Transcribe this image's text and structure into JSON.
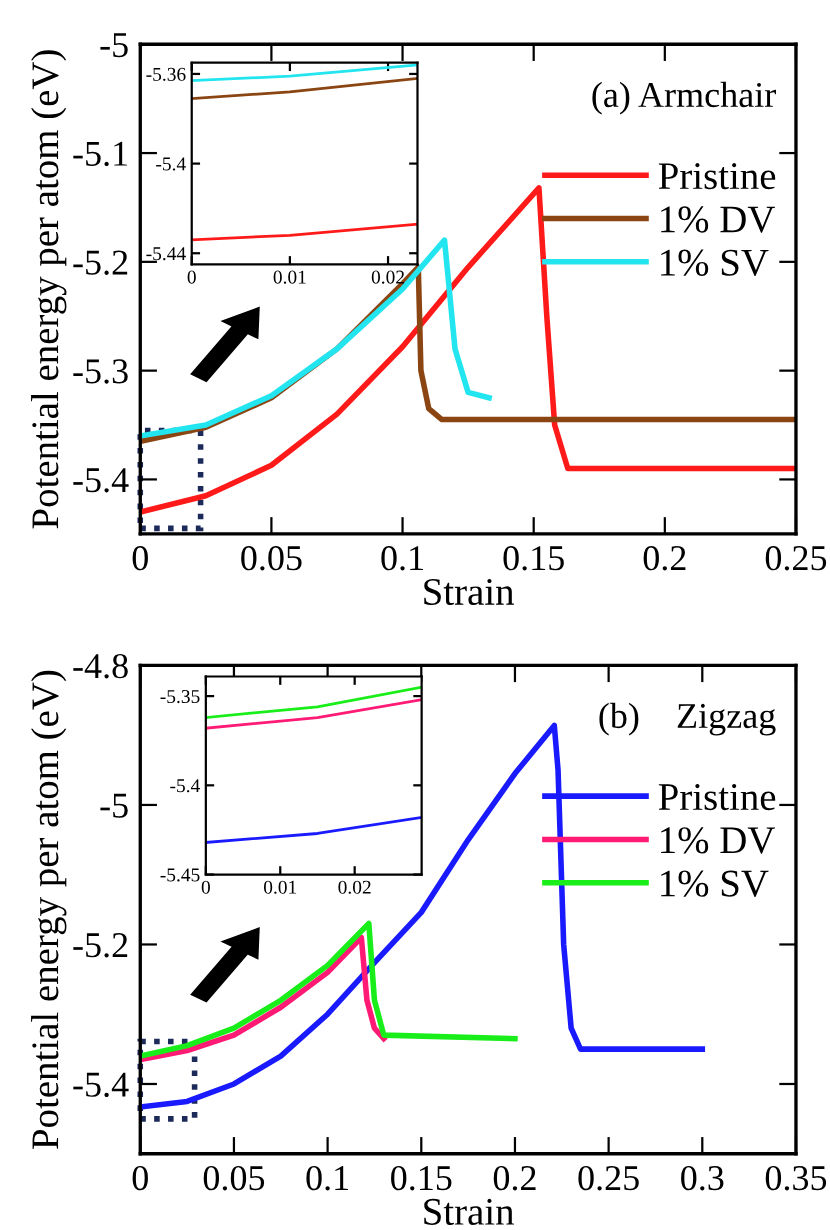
{
  "chart_data": [
    {
      "type": "line",
      "xlabel": "Strain",
      "ylabel": "Potential energy per atom (eV)",
      "xlim": [
        0,
        0.25
      ],
      "ylim": [
        -5.45,
        -5
      ],
      "xticks": [
        0,
        0.05,
        0.1,
        0.15,
        0.2,
        0.25
      ],
      "yticks": [
        -5,
        -5.1,
        -5.2,
        -5.3,
        -5.4
      ],
      "legend": "right",
      "annotations": [
        "(a) Armchair"
      ],
      "series": [
        {
          "name": "Pristine",
          "color": "#ff1a1a",
          "x": [
            0,
            0.025,
            0.05,
            0.075,
            0.1,
            0.125,
            0.152,
            0.155,
            0.158,
            0.163,
            0.25
          ],
          "values": [
            -5.43,
            -5.415,
            -5.387,
            -5.34,
            -5.278,
            -5.205,
            -5.132,
            -5.25,
            -5.35,
            -5.39,
            -5.39
          ]
        },
        {
          "name": "1% DV",
          "color": "#8b4513",
          "x": [
            0,
            0.025,
            0.05,
            0.075,
            0.1,
            0.106,
            0.107,
            0.11,
            0.115,
            0.25
          ],
          "values": [
            -5.365,
            -5.352,
            -5.325,
            -5.28,
            -5.22,
            -5.205,
            -5.3,
            -5.335,
            -5.345,
            -5.345
          ]
        },
        {
          "name": "1% SV",
          "color": "#22e5f0",
          "x": [
            0,
            0.025,
            0.05,
            0.075,
            0.1,
            0.116,
            0.12,
            0.125,
            0.133
          ],
          "values": [
            -5.36,
            -5.35,
            -5.323,
            -5.28,
            -5.225,
            -5.18,
            -5.28,
            -5.32,
            -5.325
          ]
        }
      ]
    },
    {
      "type": "line",
      "xlim": [
        0,
        0.023
      ],
      "ylim": [
        -5.445,
        -5.355
      ],
      "xticks": [
        0,
        0.01,
        0.02
      ],
      "yticks": [
        -5.36,
        -5.4,
        -5.44
      ],
      "series": [
        {
          "color": "#ff1a1a",
          "x": [
            0,
            0.01,
            0.023
          ],
          "values": [
            -5.434,
            -5.432,
            -5.427
          ]
        },
        {
          "color": "#8b4513",
          "x": [
            0,
            0.01,
            0.023
          ],
          "values": [
            -5.371,
            -5.368,
            -5.362
          ]
        },
        {
          "color": "#22e5f0",
          "x": [
            0,
            0.01,
            0.023
          ],
          "values": [
            -5.363,
            -5.361,
            -5.356
          ]
        }
      ]
    },
    {
      "type": "line",
      "xlabel": "Strain",
      "ylabel": "Potential energy per atom (eV)",
      "xlim": [
        0,
        0.35
      ],
      "ylim": [
        -5.5,
        -4.8
      ],
      "xticks": [
        0,
        0.05,
        0.1,
        0.15,
        0.2,
        0.25,
        0.3,
        0.35
      ],
      "yticks": [
        -4.8,
        -5,
        -5.2,
        -5.4
      ],
      "legend": "right",
      "annotations": [
        "(b)    Zigzag"
      ],
      "series": [
        {
          "name": "Pristine",
          "color": "#1a1aff",
          "x": [
            0,
            0.025,
            0.05,
            0.075,
            0.1,
            0.125,
            0.15,
            0.175,
            0.2,
            0.221,
            0.223,
            0.226,
            0.23,
            0.235,
            0.3
          ],
          "values": [
            -5.433,
            -5.425,
            -5.4,
            -5.36,
            -5.3,
            -5.226,
            -5.154,
            -5.05,
            -4.955,
            -4.886,
            -4.95,
            -5.2,
            -5.32,
            -5.35,
            -5.35
          ]
        },
        {
          "name": "1% DV",
          "color": "#ff1a75",
          "x": [
            0,
            0.025,
            0.05,
            0.075,
            0.1,
            0.118,
            0.121,
            0.125,
            0.13
          ],
          "values": [
            -5.365,
            -5.352,
            -5.33,
            -5.29,
            -5.24,
            -5.19,
            -5.28,
            -5.32,
            -5.335
          ]
        },
        {
          "name": "1% SV",
          "color": "#1aee1a",
          "x": [
            0,
            0.025,
            0.05,
            0.075,
            0.1,
            0.122,
            0.125,
            0.13,
            0.2
          ],
          "values": [
            -5.36,
            -5.345,
            -5.32,
            -5.28,
            -5.23,
            -5.17,
            -5.28,
            -5.33,
            -5.335
          ]
        }
      ]
    },
    {
      "type": "line",
      "xlim": [
        0,
        0.029
      ],
      "ylim": [
        -5.45,
        -5.339
      ],
      "xticks": [
        0,
        0.01,
        0.02
      ],
      "yticks": [
        -5.35,
        -5.4,
        -5.45
      ],
      "series": [
        {
          "color": "#1a1aff",
          "x": [
            0,
            0.015,
            0.029
          ],
          "values": [
            -5.432,
            -5.427,
            -5.418
          ]
        },
        {
          "color": "#ff1a75",
          "x": [
            0,
            0.015,
            0.029
          ],
          "values": [
            -5.368,
            -5.362,
            -5.352
          ]
        },
        {
          "color": "#1aee1a",
          "x": [
            0,
            0.015,
            0.029
          ],
          "values": [
            -5.362,
            -5.356,
            -5.345
          ]
        }
      ]
    }
  ]
}
